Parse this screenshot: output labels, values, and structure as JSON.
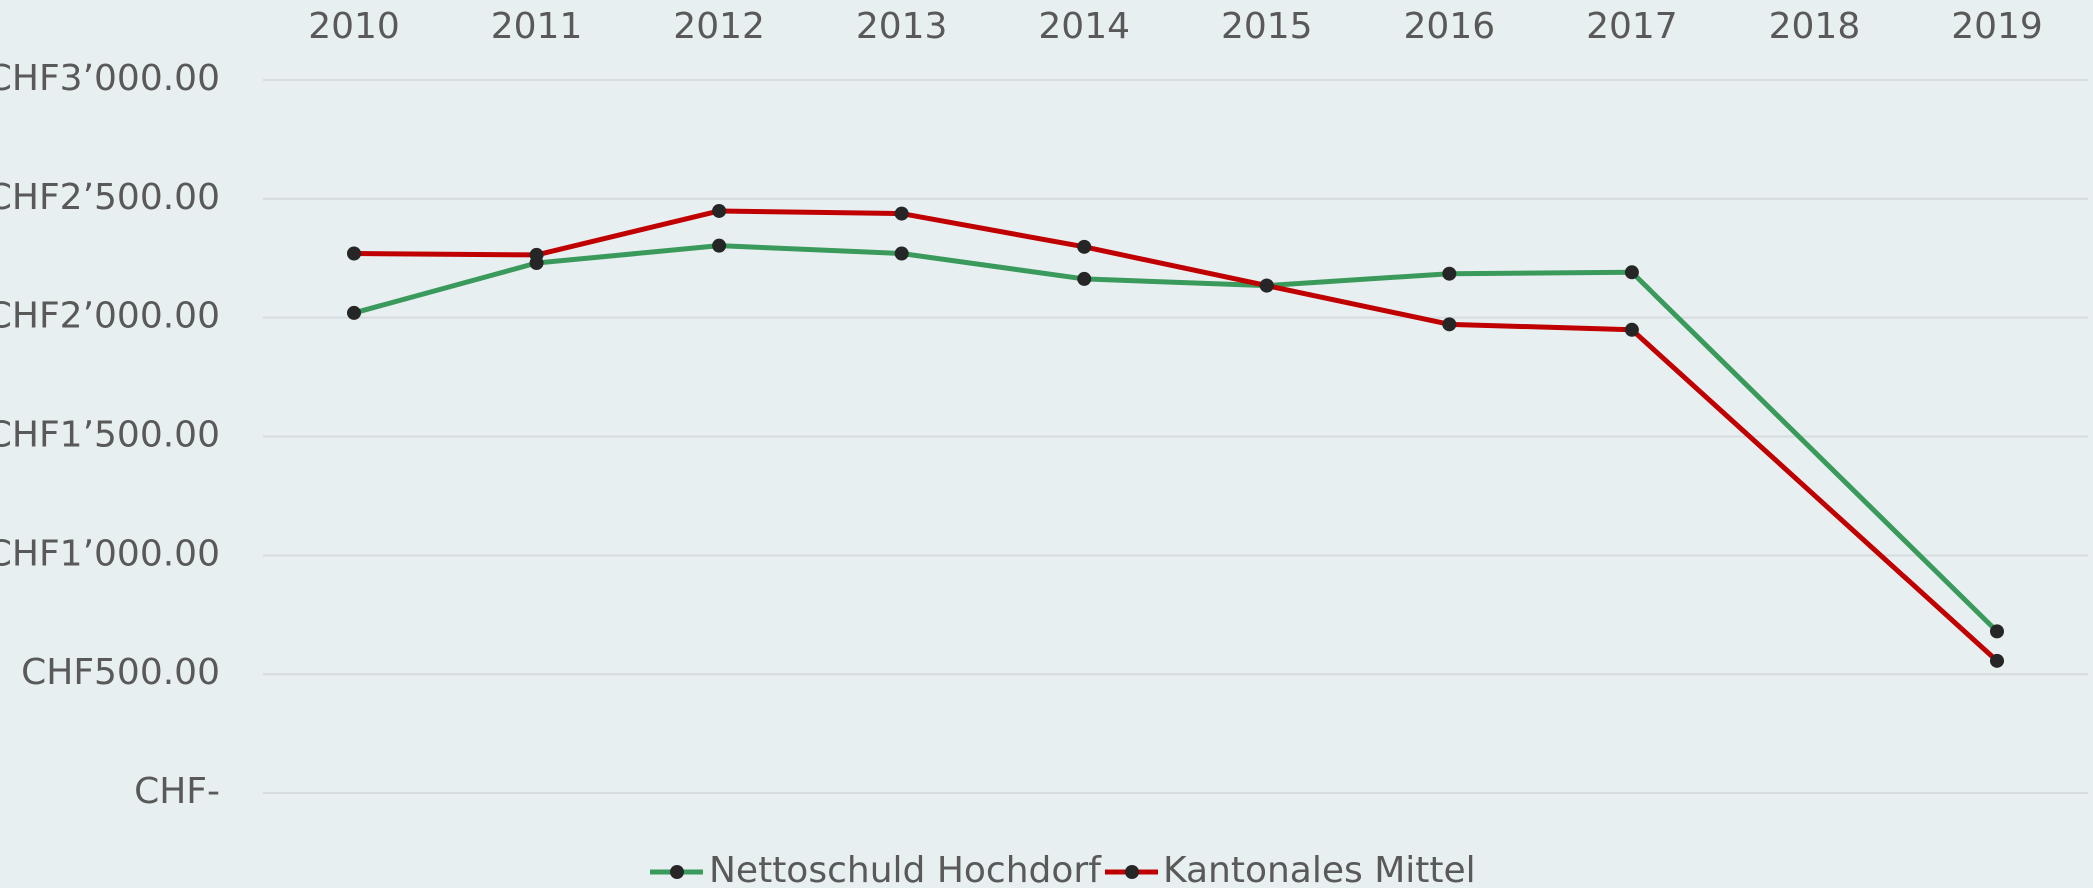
{
  "chart_data": {
    "type": "line",
    "x": [
      2010,
      2011,
      2012,
      2013,
      2014,
      2015,
      2016,
      2017,
      2019
    ],
    "series": [
      {
        "name": "Nettoschuld Hochdorf",
        "color": "#3a9a5c",
        "values": [
          2020,
          2230,
          2303,
          2270,
          2163,
          2135,
          2185,
          2191,
          680
        ]
      },
      {
        "name": "Kantonales Mittel",
        "color": "#c00000",
        "values": [
          2270,
          2264,
          2449,
          2438,
          2298,
          2135,
          1972,
          1949,
          556
        ]
      }
    ],
    "xlim": [
      2009.5,
      2019.5
    ],
    "xticks": [
      2010,
      2011,
      2012,
      2013,
      2014,
      2015,
      2016,
      2017,
      2018,
      2019
    ],
    "ylim": [
      0,
      3000
    ],
    "yticks": [
      {
        "value": 0,
        "label": "CHF-"
      },
      {
        "value": 500,
        "label": "CHF500.00"
      },
      {
        "value": 1000,
        "label": "CHF1’000.00"
      },
      {
        "value": 1500,
        "label": "CHF1’500.00"
      },
      {
        "value": 2000,
        "label": "CHF2’000.00"
      },
      {
        "value": 2500,
        "label": "CHF2’500.00"
      },
      {
        "value": 3000,
        "label": "CHF3’000.00"
      }
    ],
    "grid": true,
    "legend": "bottom"
  }
}
